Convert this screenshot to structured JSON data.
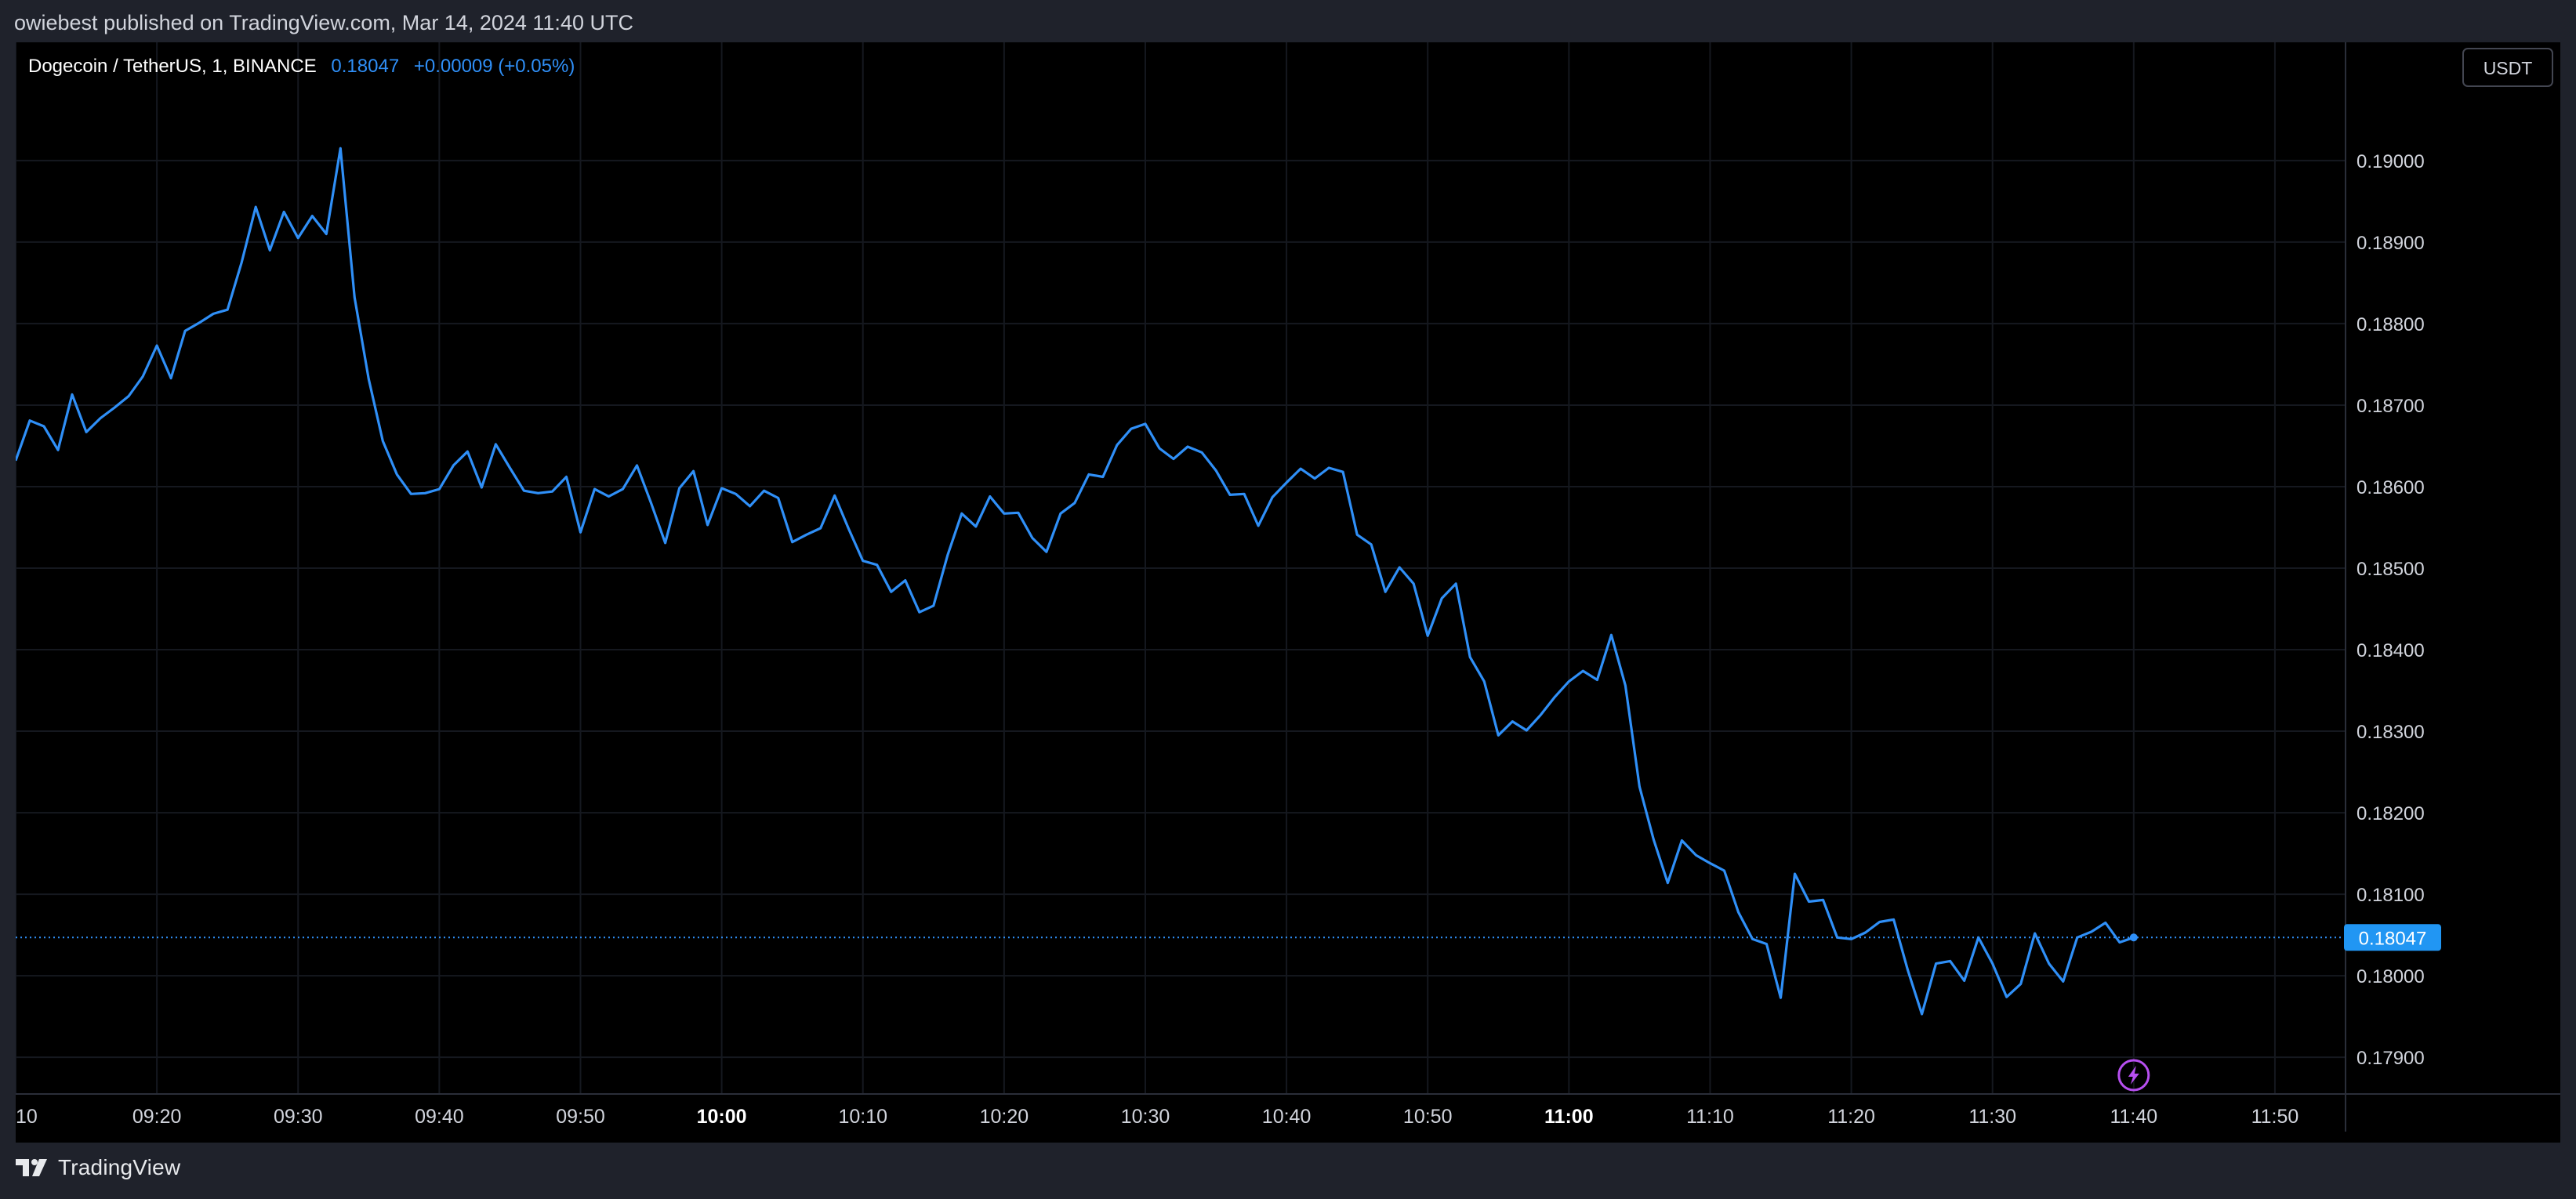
{
  "header": {
    "published": "owiebest published on TradingView.com, Mar 14, 2024 11:40 UTC"
  },
  "legend": {
    "symbol": "Dogecoin / TetherUS, 1, BINANCE",
    "price": "0.18047",
    "change": "+0.00009 (+0.05%)"
  },
  "currency_button": "USDT",
  "footer": {
    "brand": "TradingView"
  },
  "icons": {
    "brand_logo": "tradingview-logo-icon",
    "lightning": "lightning-icon"
  },
  "colors": {
    "line": "#2f8ff7",
    "background": "#000000",
    "frame": "#1f222b",
    "last_price_label": "#2196f3",
    "lightning": "#b74ff0"
  },
  "chart_data": {
    "type": "line",
    "title": "Dogecoin / TetherUS, 1, BINANCE",
    "xlabel": "",
    "ylabel": "",
    "x_range": [
      "09:10",
      "11:55"
    ],
    "ylim": [
      0.17855,
      0.19145
    ],
    "y_ticks": [
      "0.19000",
      "0.18900",
      "0.18800",
      "0.18700",
      "0.18600",
      "0.18500",
      "0.18400",
      "0.18300",
      "0.18200",
      "0.18100",
      "0.18000",
      "0.17900"
    ],
    "x_ticks": [
      {
        "label": "10",
        "t": "09:10",
        "bold": false
      },
      {
        "label": "09:20",
        "t": "09:20",
        "bold": false
      },
      {
        "label": "09:30",
        "t": "09:30",
        "bold": false
      },
      {
        "label": "09:40",
        "t": "09:40",
        "bold": false
      },
      {
        "label": "09:50",
        "t": "09:50",
        "bold": false
      },
      {
        "label": "10:00",
        "t": "10:00",
        "bold": true
      },
      {
        "label": "10:10",
        "t": "10:10",
        "bold": false
      },
      {
        "label": "10:20",
        "t": "10:20",
        "bold": false
      },
      {
        "label": "10:30",
        "t": "10:30",
        "bold": false
      },
      {
        "label": "10:40",
        "t": "10:40",
        "bold": false
      },
      {
        "label": "10:50",
        "t": "10:50",
        "bold": false
      },
      {
        "label": "11:00",
        "t": "11:00",
        "bold": true
      },
      {
        "label": "11:10",
        "t": "11:10",
        "bold": false
      },
      {
        "label": "11:20",
        "t": "11:20",
        "bold": false
      },
      {
        "label": "11:30",
        "t": "11:30",
        "bold": false
      },
      {
        "label": "11:40",
        "t": "11:40",
        "bold": false
      },
      {
        "label": "11:50",
        "t": "11:50",
        "bold": false
      }
    ],
    "last_price": 0.18047,
    "last_price_label": "0.18047",
    "grid": true,
    "series": [
      {
        "x": [
          "09:10",
          "09:11",
          "09:12",
          "09:13",
          "09:14",
          "09:15",
          "09:16",
          "09:17",
          "09:18",
          "09:19",
          "09:20",
          "09:21",
          "09:22",
          "09:23",
          "09:24",
          "09:25",
          "09:26",
          "09:27",
          "09:28",
          "09:29",
          "09:30",
          "09:31",
          "09:32",
          "09:33",
          "09:34",
          "09:35",
          "09:36",
          "09:37",
          "09:38",
          "09:39",
          "09:40",
          "09:41",
          "09:42",
          "09:43",
          "09:44",
          "09:45",
          "09:46",
          "09:47",
          "09:48",
          "09:49",
          "09:50",
          "09:51",
          "09:52",
          "09:53",
          "09:54",
          "09:55",
          "09:56",
          "09:57",
          "09:58",
          "09:59",
          "10:00",
          "10:01",
          "10:02",
          "10:03",
          "10:04",
          "10:05",
          "10:06",
          "10:07",
          "10:08",
          "10:09",
          "10:10",
          "10:11",
          "10:12",
          "10:13",
          "10:14",
          "10:15",
          "10:16",
          "10:17",
          "10:18",
          "10:19",
          "10:20",
          "10:21",
          "10:22",
          "10:23",
          "10:24",
          "10:25",
          "10:26",
          "10:27",
          "10:28",
          "10:29",
          "10:30",
          "10:31",
          "10:32",
          "10:33",
          "10:34",
          "10:35",
          "10:36",
          "10:37",
          "10:38",
          "10:39",
          "10:40",
          "10:41",
          "10:42",
          "10:43",
          "10:44",
          "10:45",
          "10:46",
          "10:47",
          "10:48",
          "10:49",
          "10:50",
          "10:51",
          "10:52",
          "10:53",
          "10:54",
          "10:55",
          "10:56",
          "10:57",
          "10:58",
          "10:59",
          "11:00",
          "11:01",
          "11:02",
          "11:03",
          "11:04",
          "11:05",
          "11:06",
          "11:07",
          "11:08",
          "11:09",
          "11:10",
          "11:11",
          "11:12",
          "11:13",
          "11:14",
          "11:15",
          "11:16",
          "11:17",
          "11:18",
          "11:19",
          "11:20",
          "11:21",
          "11:22",
          "11:23",
          "11:24",
          "11:25",
          "11:26",
          "11:27",
          "11:28",
          "11:29",
          "11:30",
          "11:31",
          "11:32",
          "11:33",
          "11:34",
          "11:35",
          "11:36",
          "11:37",
          "11:38",
          "11:39",
          "11:40"
        ],
        "values": [
          0.18632,
          0.18681,
          0.18674,
          0.18645,
          0.18713,
          0.18667,
          0.18684,
          0.18697,
          0.18711,
          0.18735,
          0.18773,
          0.18733,
          0.18791,
          0.18801,
          0.18812,
          0.18817,
          0.18875,
          0.18943,
          0.1889,
          0.18937,
          0.18905,
          0.18932,
          0.1891,
          0.19015,
          0.18832,
          0.18732,
          0.18656,
          0.18615,
          0.18591,
          0.18592,
          0.18597,
          0.18626,
          0.18643,
          0.18599,
          0.18652,
          0.18623,
          0.18595,
          0.18592,
          0.18594,
          0.18612,
          0.18544,
          0.18597,
          0.18588,
          0.18597,
          0.18626,
          0.1858,
          0.18531,
          0.18598,
          0.18619,
          0.18553,
          0.18598,
          0.18591,
          0.18576,
          0.18595,
          0.18586,
          0.18532,
          0.18541,
          0.18549,
          0.18589,
          0.18548,
          0.18509,
          0.18504,
          0.18471,
          0.18485,
          0.18446,
          0.18454,
          0.18516,
          0.18567,
          0.18551,
          0.18588,
          0.18567,
          0.18568,
          0.18537,
          0.1852,
          0.18567,
          0.1858,
          0.18615,
          0.18612,
          0.18651,
          0.18671,
          0.18677,
          0.18647,
          0.18634,
          0.18649,
          0.18642,
          0.1862,
          0.1859,
          0.18591,
          0.18552,
          0.18587,
          0.18605,
          0.18622,
          0.1861,
          0.18623,
          0.18618,
          0.18541,
          0.18529,
          0.18471,
          0.18501,
          0.18481,
          0.18417,
          0.18463,
          0.18481,
          0.18391,
          0.18361,
          0.18295,
          0.18312,
          0.18301,
          0.1832,
          0.18342,
          0.18361,
          0.18374,
          0.18363,
          0.18418,
          0.18356,
          0.18232,
          0.18167,
          0.18114,
          0.18166,
          0.18148,
          0.18138,
          0.18129,
          0.18078,
          0.18045,
          0.18039,
          0.17973,
          0.18125,
          0.18091,
          0.18093,
          0.18047,
          0.18045,
          0.18053,
          0.18066,
          0.18069,
          0.18007,
          0.17953,
          0.18015,
          0.18018,
          0.17994,
          0.18047,
          0.18015,
          0.17974,
          0.1799,
          0.18052,
          0.18015,
          0.17993,
          0.18047,
          0.18054,
          0.18065,
          0.18041,
          0.18047
        ]
      }
    ]
  }
}
